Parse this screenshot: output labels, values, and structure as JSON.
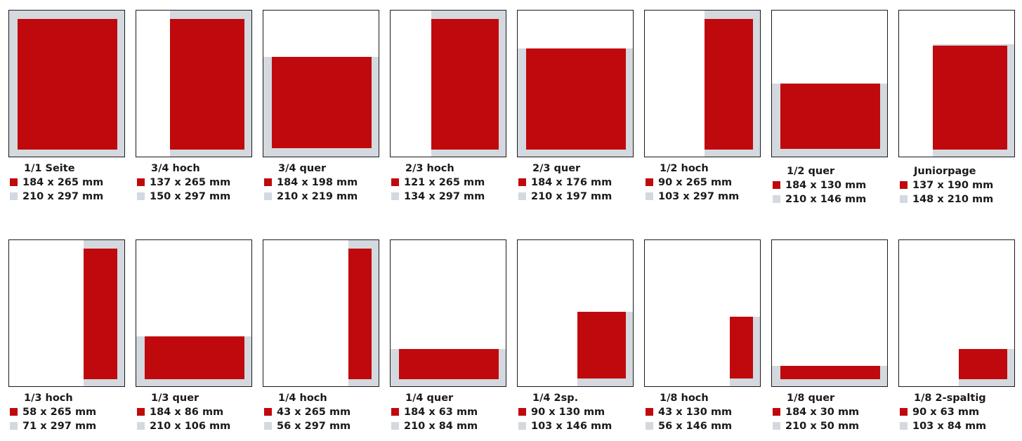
{
  "colors": {
    "trim": "#c0090d",
    "bleed": "#d3d9de",
    "frame": "#1a1a1a"
  },
  "formats": [
    {
      "title": "1/1 Seite",
      "trim": "184 x 265 mm",
      "bleed": "210 x 297 mm"
    },
    {
      "title": "3/4 hoch",
      "trim": "137 x 265 mm",
      "bleed": "150 x 297 mm"
    },
    {
      "title": "3/4 quer",
      "trim": "184 x 198 mm",
      "bleed": "210 x 219 mm"
    },
    {
      "title": "2/3 hoch",
      "trim": "121 x 265 mm",
      "bleed": "134 x 297 mm"
    },
    {
      "title": "2/3 quer",
      "trim": "184 x 176 mm",
      "bleed": "210 x 197 mm"
    },
    {
      "title": "1/2 hoch",
      "trim": "90 x 265 mm",
      "bleed": "103 x 297 mm"
    },
    {
      "title": "1/2 quer",
      "trim": "184 x 130 mm",
      "bleed": "210 x 146 mm"
    },
    {
      "title": "Juniorpage",
      "trim": "137 x 190 mm",
      "bleed": "148 x 210 mm"
    },
    {
      "title": "1/3 hoch",
      "trim": "58 x 265 mm",
      "bleed": "71 x 297 mm"
    },
    {
      "title": "1/3 quer",
      "trim": "184 x 86 mm",
      "bleed": "210 x 106 mm"
    },
    {
      "title": "1/4 hoch",
      "trim": "43 x 265 mm",
      "bleed": "56 x 297 mm"
    },
    {
      "title": "1/4 quer",
      "trim": "184 x 63 mm",
      "bleed": "210 x 84 mm"
    },
    {
      "title": "1/4 2sp.",
      "trim": "90 x 130 mm",
      "bleed": "103 x 146 mm"
    },
    {
      "title": "1/8 hoch",
      "trim": "43 x 130 mm",
      "bleed": "56 x 146 mm"
    },
    {
      "title": "1/8 quer",
      "trim": "184 x 30 mm",
      "bleed": "210 x 50 mm"
    },
    {
      "title": "1/8 2-spaltig",
      "trim": "90 x 63 mm",
      "bleed": "103 x 84 mm"
    }
  ]
}
